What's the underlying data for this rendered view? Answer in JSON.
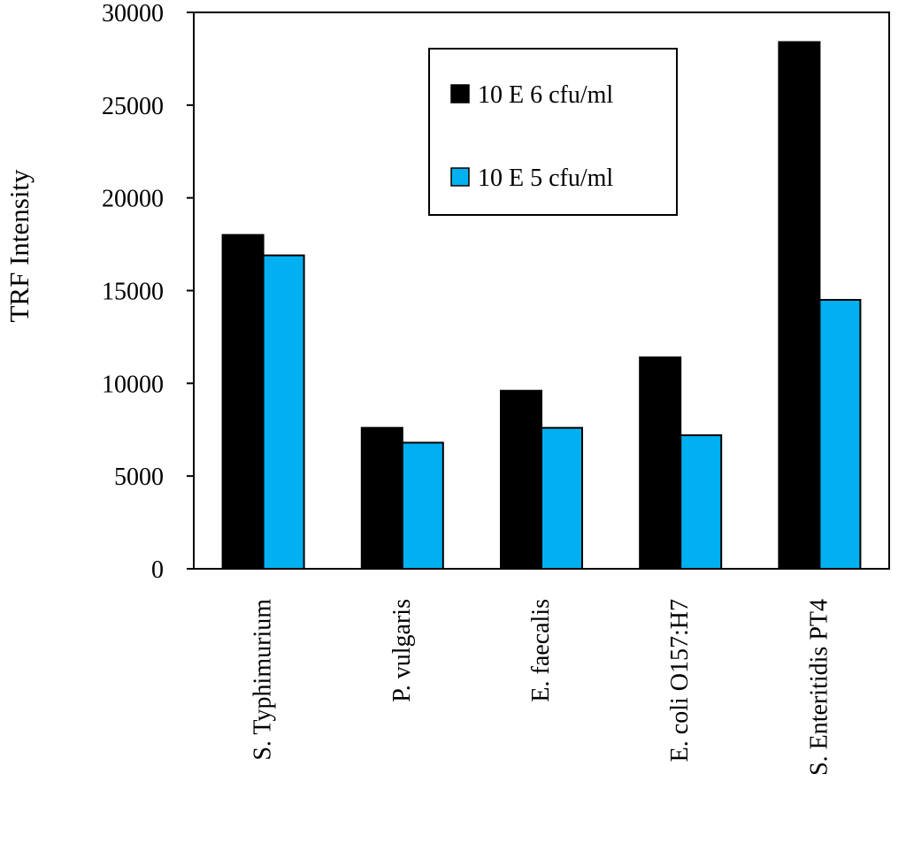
{
  "chart_data": {
    "type": "bar",
    "title": "",
    "xlabel": "",
    "ylabel": "TRF Intensity",
    "ylim": [
      0,
      30000
    ],
    "yticks": [
      0,
      5000,
      10000,
      15000,
      20000,
      25000,
      30000
    ],
    "grid": false,
    "legend_position": "top-right",
    "categories": [
      "S. Typhimurium",
      "P. vulgaris",
      "E. faecalis",
      "E. coli O157:H7",
      "S. Enteritidis PT4"
    ],
    "series": [
      {
        "name": "10 E 6 cfu/ml",
        "color": "#000000",
        "values": [
          18000,
          7600,
          9600,
          11400,
          28400
        ]
      },
      {
        "name": "10 E 5 cfu/ml",
        "color": "#00b0f0",
        "values": [
          16900,
          6800,
          7600,
          7200,
          14500
        ]
      }
    ]
  }
}
